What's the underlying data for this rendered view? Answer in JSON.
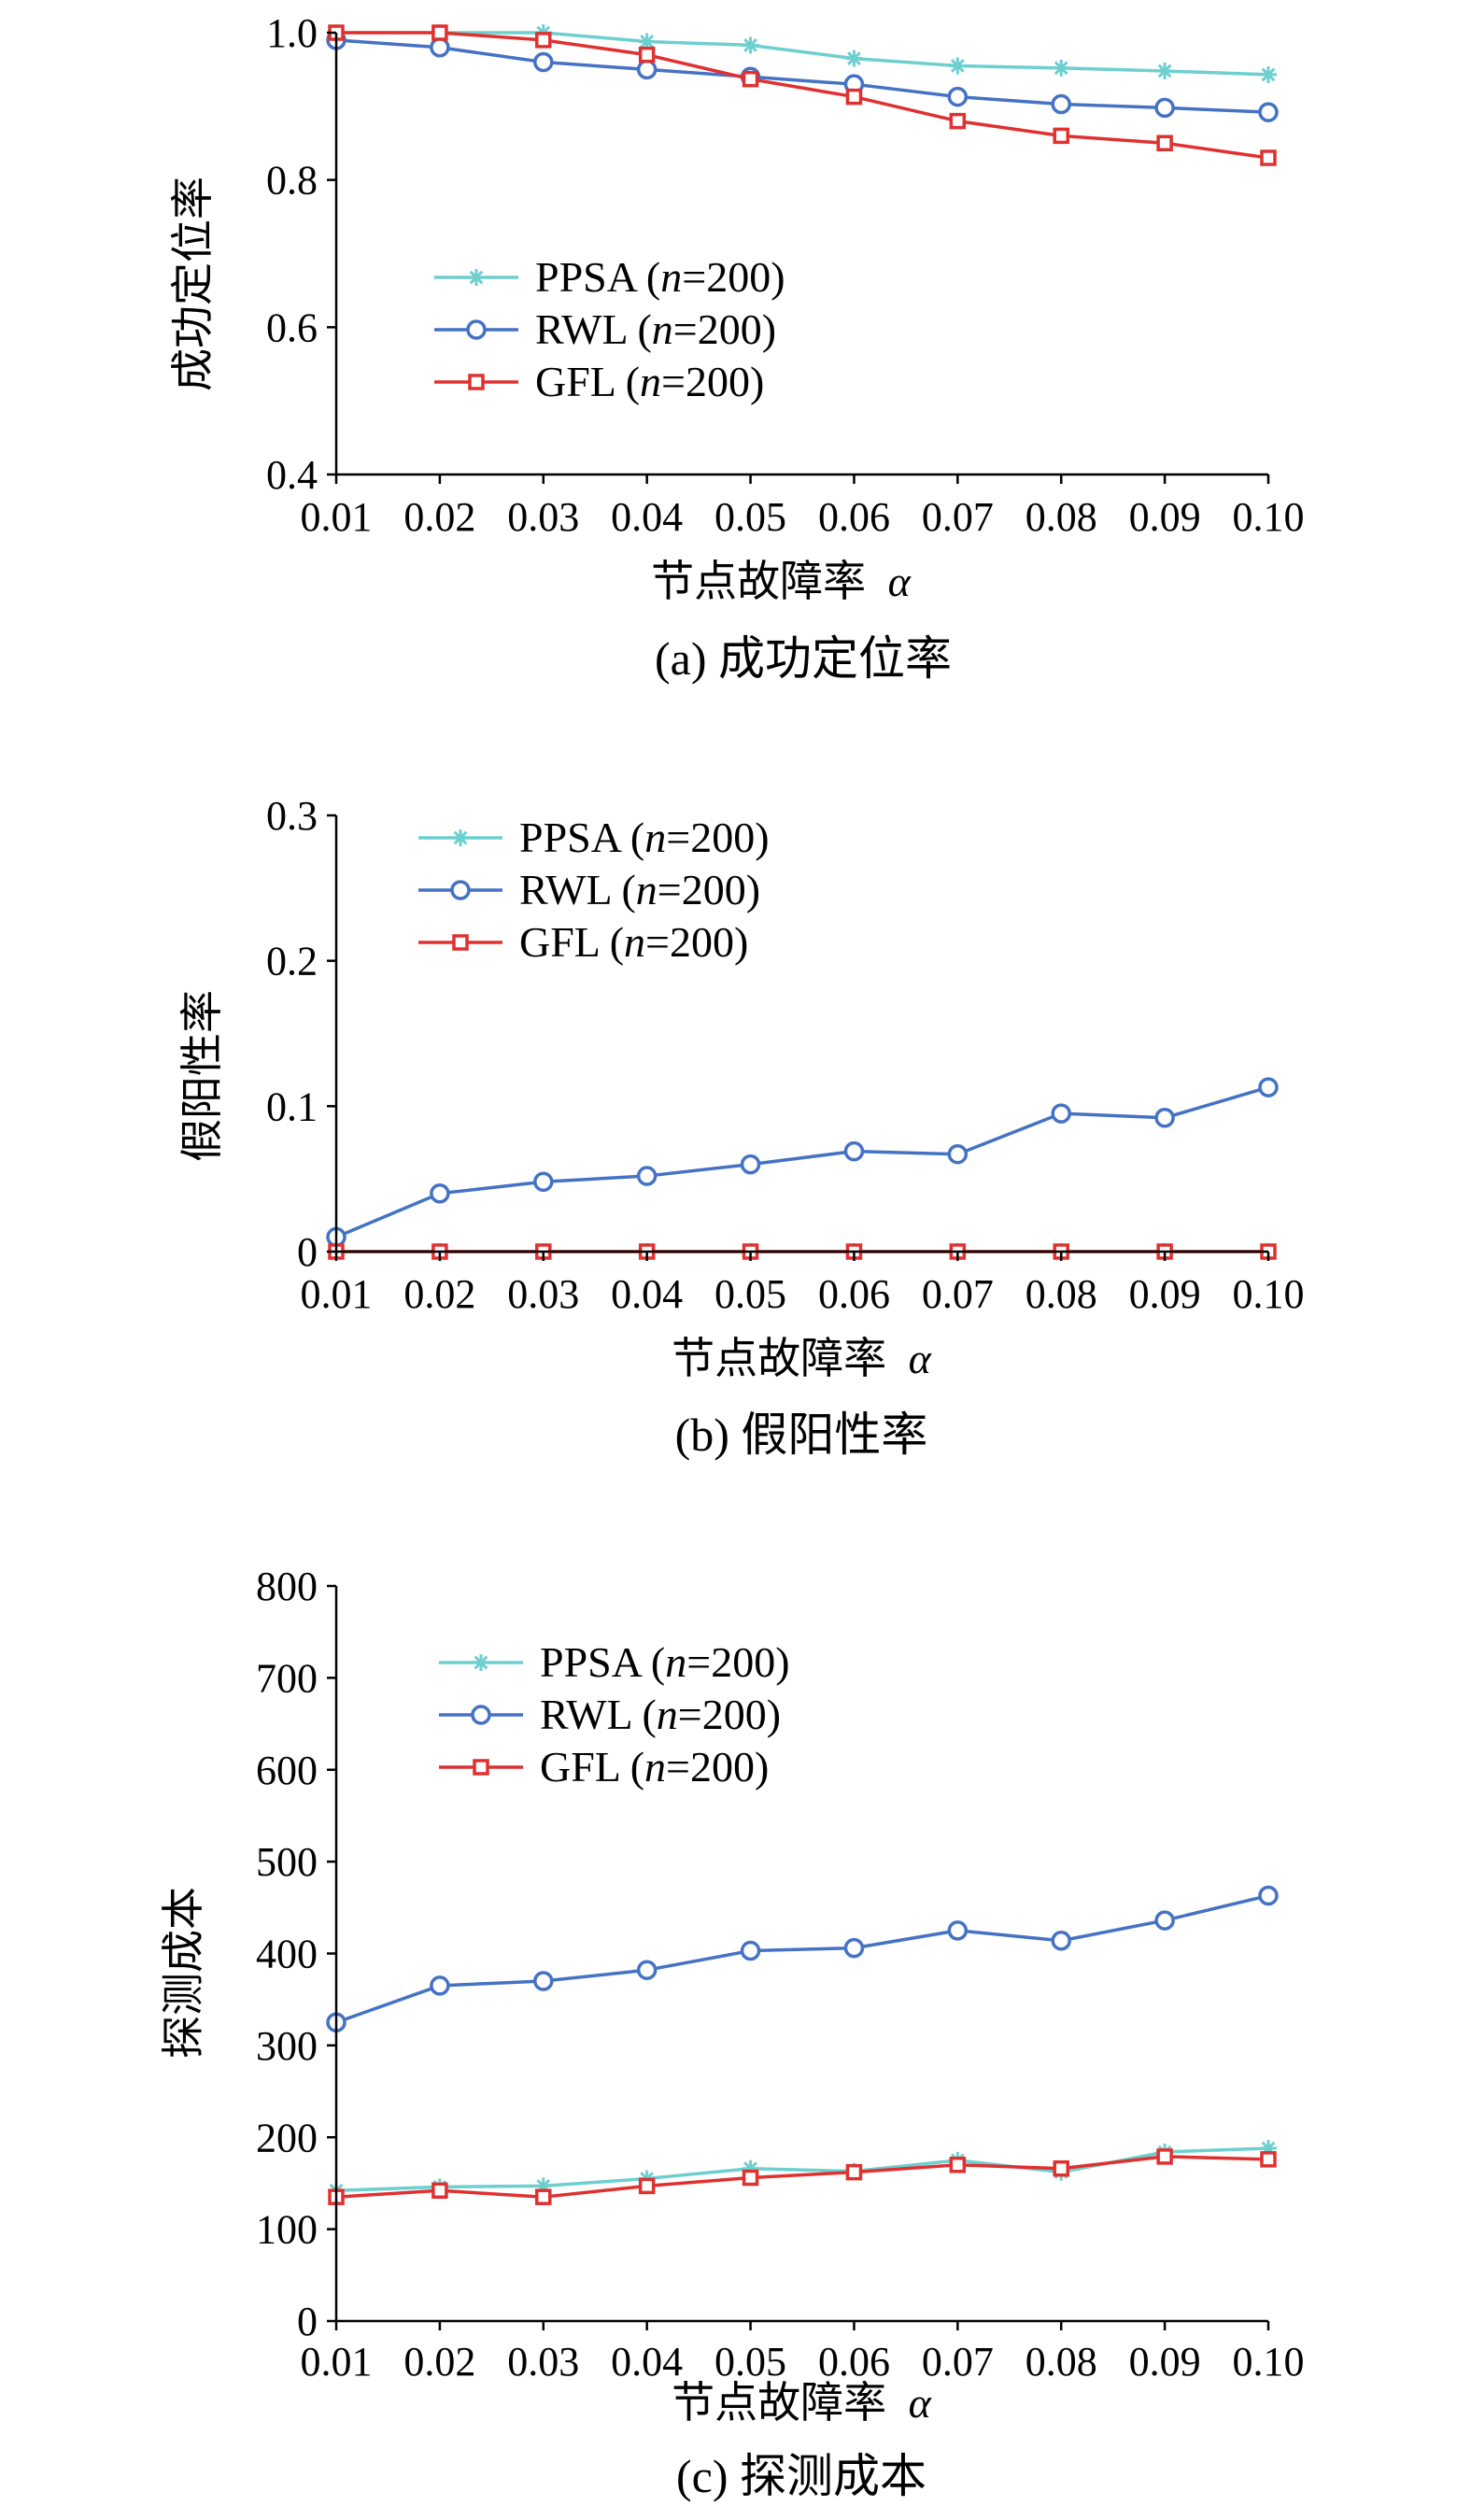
{
  "chart_data": [
    {
      "type": "line",
      "panel_label": "(a) 成功定位率",
      "xlabel": "节点故障率",
      "xlabel_symbol": "α",
      "ylabel": "成功定位率",
      "categories": [
        "0.01",
        "0.02",
        "0.03",
        "0.04",
        "0.05",
        "0.06",
        "0.07",
        "0.08",
        "0.09",
        "0.10"
      ],
      "ylim": [
        0.4,
        1.0
      ],
      "yticks": [
        "0.4",
        "0.6",
        "0.8",
        "1.0"
      ],
      "grid": false,
      "legend_position": "middle-left",
      "series": [
        {
          "name": "PPSA",
          "n_label": "n",
          "n_value": "=200",
          "color": "#6ecfcf",
          "marker": "asterisk",
          "values": [
            1.0,
            1.0,
            1.0,
            0.988,
            0.983,
            0.965,
            0.955,
            0.952,
            0.948,
            0.943
          ]
        },
        {
          "name": "RWL",
          "n_label": "n",
          "n_value": "=200",
          "color": "#4472c4",
          "marker": "circle",
          "values": [
            0.99,
            0.98,
            0.96,
            0.95,
            0.94,
            0.93,
            0.913,
            0.903,
            0.898,
            0.892
          ]
        },
        {
          "name": "GFL",
          "n_label": "n",
          "n_value": "=200",
          "color": "#e03030",
          "marker": "square",
          "values": [
            1.0,
            1.0,
            0.99,
            0.97,
            0.937,
            0.913,
            0.88,
            0.86,
            0.85,
            0.83
          ]
        }
      ]
    },
    {
      "type": "line",
      "panel_label": "(b) 假阳性率",
      "xlabel": "节点故障率",
      "xlabel_symbol": "α",
      "ylabel": "假阳性率",
      "categories": [
        "0.01",
        "0.02",
        "0.03",
        "0.04",
        "0.05",
        "0.06",
        "0.07",
        "0.08",
        "0.09",
        "0.10"
      ],
      "ylim": [
        0,
        0.3
      ],
      "yticks": [
        "0",
        "0.1",
        "0.2",
        "0.3"
      ],
      "grid": false,
      "legend_position": "top-left",
      "series": [
        {
          "name": "PPSA",
          "n_label": "n",
          "n_value": "=200",
          "color": "#6ecfcf",
          "marker": "asterisk",
          "values": [
            0,
            0,
            0,
            0,
            0,
            0,
            0,
            0,
            0,
            0
          ]
        },
        {
          "name": "RWL",
          "n_label": "n",
          "n_value": "=200",
          "color": "#4472c4",
          "marker": "circle",
          "values": [
            0.01,
            0.04,
            0.048,
            0.052,
            0.06,
            0.069,
            0.067,
            0.095,
            0.092,
            0.113
          ]
        },
        {
          "name": "GFL",
          "n_label": "n",
          "n_value": "=200",
          "color": "#e03030",
          "marker": "square",
          "values": [
            0,
            0,
            0,
            0,
            0,
            0,
            0,
            0,
            0,
            0
          ]
        }
      ]
    },
    {
      "type": "line",
      "panel_label": "(c) 探测成本",
      "xlabel": "节点故障率",
      "xlabel_symbol": "α",
      "ylabel": "探测成本",
      "categories": [
        "0.01",
        "0.02",
        "0.03",
        "0.04",
        "0.05",
        "0.06",
        "0.07",
        "0.08",
        "0.09",
        "0.10"
      ],
      "ylim": [
        0,
        800
      ],
      "yticks": [
        "0",
        "100",
        "200",
        "300",
        "400",
        "500",
        "600",
        "700",
        "800"
      ],
      "grid": false,
      "legend_position": "top-left",
      "series": [
        {
          "name": "PPSA",
          "n_label": "n",
          "n_value": "=200",
          "color": "#6ecfcf",
          "marker": "asterisk",
          "values": [
            142,
            146,
            147,
            155,
            166,
            163,
            175,
            162,
            184,
            188
          ]
        },
        {
          "name": "RWL",
          "n_label": "n",
          "n_value": "=200",
          "color": "#4472c4",
          "marker": "circle",
          "values": [
            325,
            365,
            370,
            382,
            403,
            406,
            425,
            414,
            436,
            463
          ]
        },
        {
          "name": "GFL",
          "n_label": "n",
          "n_value": "=200",
          "color": "#e03030",
          "marker": "square",
          "values": [
            135,
            142,
            135,
            147,
            156,
            162,
            170,
            166,
            179,
            176
          ]
        }
      ]
    }
  ]
}
